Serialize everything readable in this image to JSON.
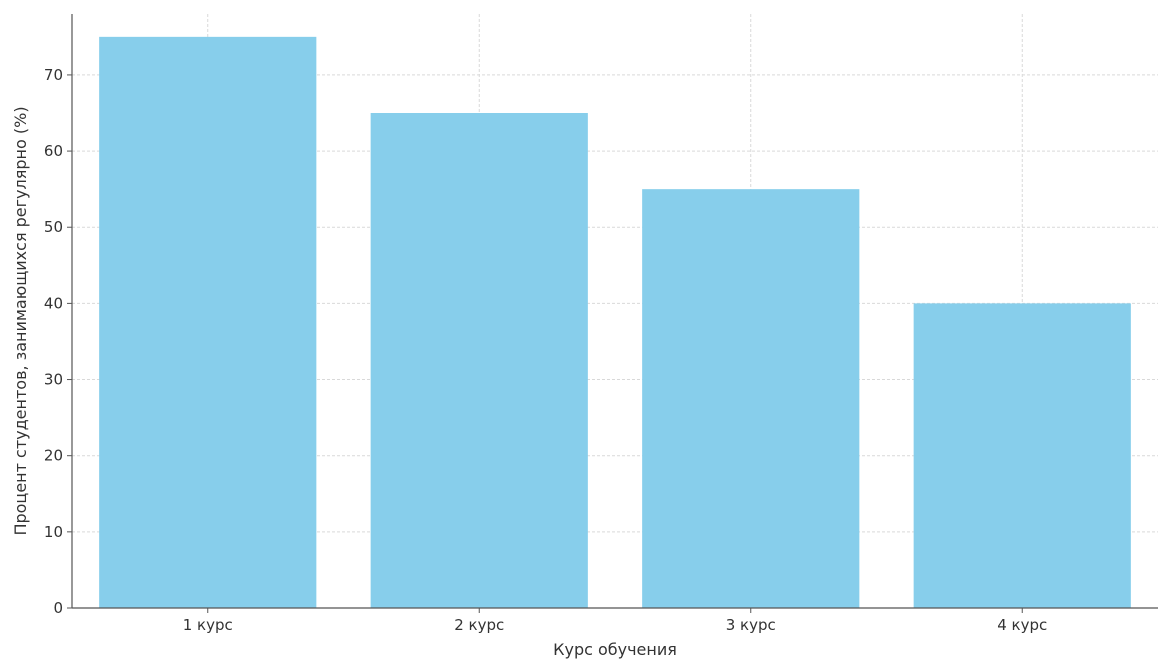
{
  "chart_data": {
    "type": "bar",
    "categories": [
      "1 курс",
      "2 курс",
      "3 курс",
      "4 курс"
    ],
    "values": [
      75,
      65,
      55,
      40
    ],
    "title": "",
    "xlabel": "Курс обучения",
    "ylabel": "Процент студентов, занимающихся регулярно (%)",
    "ylim": [
      0,
      78
    ],
    "yticks": [
      0,
      10,
      20,
      30,
      40,
      50,
      60,
      70
    ],
    "grid": true,
    "bar_color": "#87ceeb"
  }
}
